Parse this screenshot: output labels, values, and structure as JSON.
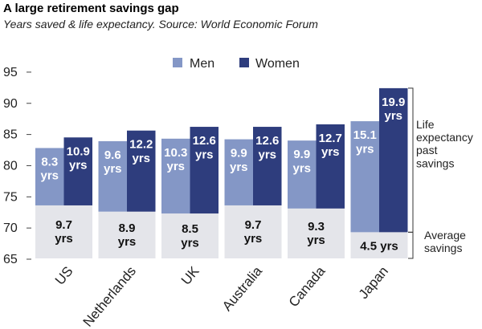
{
  "title": "A large retirement savings gap",
  "subtitle": "Years saved & life expectancy. Source: World Economic Forum",
  "colors": {
    "men": "#8497c6",
    "women": "#2e3d7d",
    "savings": "#e4e5ea",
    "bracket": "#333333"
  },
  "chart_data": {
    "type": "bar",
    "categories": [
      "US",
      "Netherlands",
      "UK",
      "Australia",
      "Canada",
      "Japan"
    ],
    "ylim": [
      65,
      95
    ],
    "yticks": [
      65,
      70,
      75,
      80,
      85,
      90,
      95
    ],
    "legend": [
      "Men",
      "Women"
    ],
    "series": [
      {
        "name": "Men",
        "base": [
          73.5,
          72.5,
          72.2,
          73.5,
          73.0,
          69.2
        ],
        "values": [
          82.7,
          83.8,
          84.2,
          84.1,
          83.9,
          87.0
        ],
        "labels": [
          "8.3\nyrs",
          "9.6\nyrs",
          "10.3\nyrs",
          "9.9\nyrs",
          "9.9\nyrs",
          "15.1\nyrs"
        ]
      },
      {
        "name": "Women",
        "base": [
          73.5,
          72.5,
          72.2,
          73.5,
          73.0,
          69.2
        ],
        "values": [
          84.4,
          85.5,
          86.1,
          86.1,
          86.5,
          92.3
        ],
        "labels": [
          "10.9\nyrs",
          "12.2\nyrs",
          "12.6\nyrs",
          "12.6\nyrs",
          "12.7\nyrs",
          "19.9\nyrs"
        ]
      }
    ],
    "savings": {
      "values": [
        73.5,
        72.5,
        72.2,
        73.5,
        73.0,
        69.2
      ],
      "labels": [
        "9.7\nyrs",
        "8.9\nyrs",
        "8.5\nyrs",
        "9.7\nyrs",
        "9.3\nyrs",
        "4.5 yrs"
      ]
    },
    "annotations": {
      "life": "Life\nexpectancy\npast\nsavings",
      "savings": "Average\nsavings"
    }
  }
}
